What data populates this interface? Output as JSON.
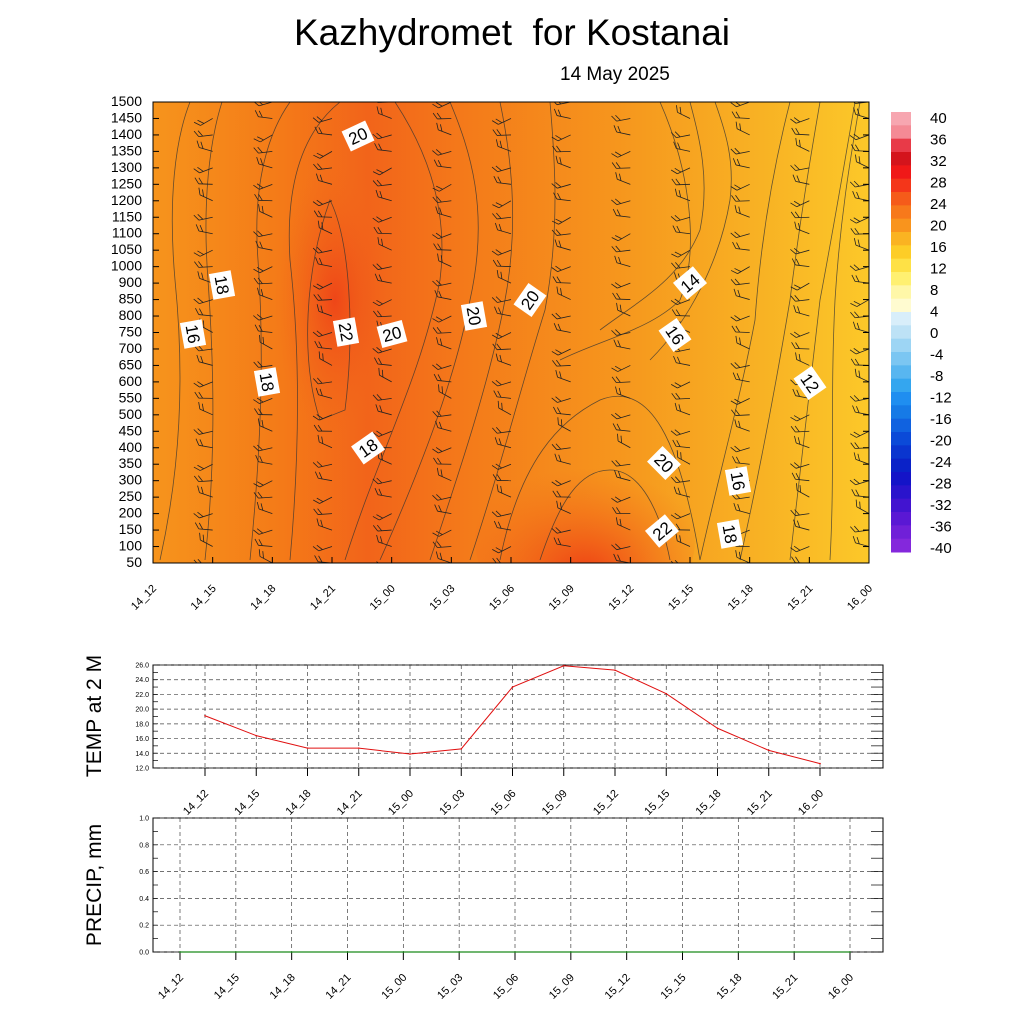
{
  "title": "Kazhydromet  for Kostanai",
  "subtitle": "14 May 2025",
  "colors": {
    "temp_line": "#e01010",
    "precip_line": "#1a8a1a",
    "grid": "#555555"
  },
  "chart_data": [
    {
      "type": "heatmap",
      "x_ticks": [
        "14_12",
        "14_15",
        "14_18",
        "14_21",
        "15_00",
        "15_03",
        "15_06",
        "15_09",
        "15_12",
        "15_15",
        "15_18",
        "15_21",
        "16_00"
      ],
      "y_ticks": [
        1500,
        1450,
        1400,
        1350,
        1300,
        1250,
        1200,
        1150,
        1100,
        1050,
        1000,
        900,
        850,
        800,
        750,
        700,
        650,
        600,
        550,
        500,
        450,
        400,
        350,
        300,
        250,
        200,
        150,
        100,
        50
      ],
      "colorbar_labels": [
        "40",
        "36",
        "32",
        "28",
        "24",
        "20",
        "16",
        "12",
        "8",
        "4",
        "0",
        "-4",
        "-8",
        "-12",
        "-16",
        "-20",
        "-24",
        "-28",
        "-32",
        "-36",
        "-40"
      ],
      "contour_labels": [
        "20",
        "18",
        "16",
        "22",
        "20",
        "20",
        "18",
        "20",
        "18",
        "14",
        "16",
        "20",
        "16",
        "22",
        "18",
        "12"
      ]
    },
    {
      "type": "line",
      "ylabel": "TEMP at 2 M",
      "x": [
        "14_12",
        "14_15",
        "14_18",
        "14_21",
        "15_00",
        "15_03",
        "15_06",
        "15_09",
        "15_12",
        "15_15",
        "15_18",
        "15_21",
        "16_00"
      ],
      "series": [
        {
          "values": [
            19.1,
            16.4,
            14.7,
            14.7,
            13.9,
            14.6,
            23.0,
            25.9,
            25.3,
            22.1,
            17.4,
            14.4,
            12.6
          ]
        }
      ],
      "ylim": [
        12,
        26
      ],
      "y_ticks": [
        "26.0",
        "24.0",
        "22.0",
        "20.0",
        "18.0",
        "16.0",
        "14.0",
        "12.0"
      ]
    },
    {
      "type": "line",
      "ylabel": "PRECIP, mm",
      "x": [
        "14_12",
        "14_15",
        "14_18",
        "14_21",
        "15_00",
        "15_03",
        "15_06",
        "15_09",
        "15_12",
        "15_15",
        "15_18",
        "15_21",
        "16_00"
      ],
      "series": [
        {
          "values": [
            0,
            0,
            0,
            0,
            0,
            0,
            0,
            0,
            0,
            0,
            0,
            0,
            0
          ]
        }
      ],
      "ylim": [
        0,
        1
      ],
      "y_ticks": [
        "1.0",
        "0.8",
        "0.6",
        "0.4",
        "0.2",
        "0.0"
      ]
    }
  ]
}
